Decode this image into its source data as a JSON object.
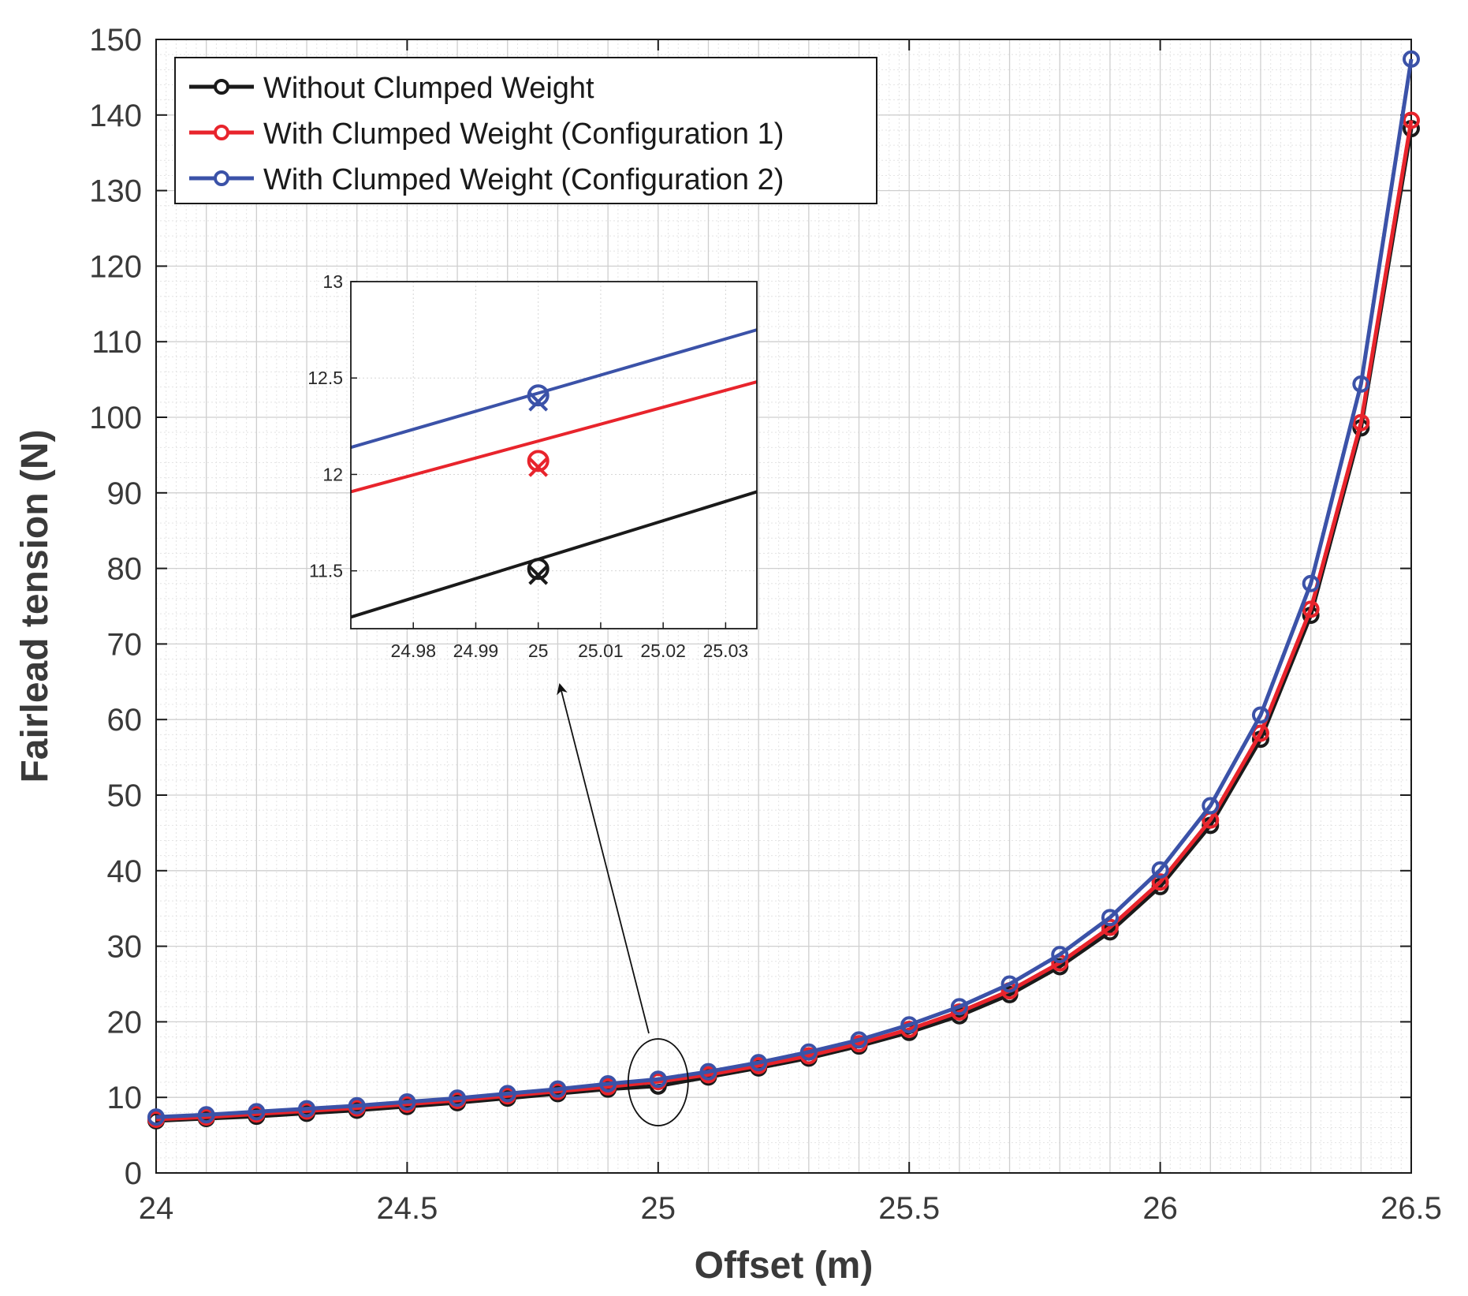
{
  "chart_data": {
    "type": "line",
    "title": "",
    "xlabel": "Offset (m)",
    "ylabel": "Fairlead tension (N)",
    "xlim": [
      24,
      26.5
    ],
    "ylim": [
      0,
      150
    ],
    "xticks": [
      "24",
      "24.5",
      "25",
      "25.5",
      "26",
      "26.5"
    ],
    "yticks": [
      "0",
      "10",
      "20",
      "30",
      "40",
      "50",
      "60",
      "70",
      "80",
      "90",
      "100",
      "110",
      "120",
      "130",
      "140",
      "150"
    ],
    "grid": true,
    "legend_position": "top-left",
    "x": [
      24,
      24.1,
      24.2,
      24.3,
      24.4,
      24.5,
      24.6,
      24.7,
      24.8,
      24.9,
      25,
      25.1,
      25.2,
      25.3,
      25.4,
      25.5,
      25.6,
      25.7,
      25.8,
      25.9,
      26,
      26.1,
      26.2,
      26.3,
      26.4,
      26.5
    ],
    "series": [
      {
        "name": "Without Clumped Weight",
        "color": "#1a1a1a",
        "values": [
          6.9,
          7.2,
          7.5,
          7.9,
          8.3,
          8.8,
          9.3,
          9.9,
          10.5,
          11.1,
          11.5,
          12.7,
          13.9,
          15.2,
          16.8,
          18.6,
          20.8,
          23.6,
          27.3,
          31.9,
          37.9,
          46.0,
          57.4,
          73.8,
          98.6,
          138.2
        ]
      },
      {
        "name": "With Clumped Weight (Configuration 1)",
        "color": "#e8242c",
        "values": [
          7.1,
          7.4,
          7.8,
          8.2,
          8.6,
          9.1,
          9.6,
          10.2,
          10.8,
          11.4,
          12.1,
          13.0,
          14.2,
          15.5,
          17.1,
          19.0,
          21.3,
          24.1,
          27.8,
          32.5,
          38.5,
          46.7,
          58.2,
          74.6,
          99.3,
          139.3
        ]
      },
      {
        "name": "With Clumped Weight (Configuration 2)",
        "color": "#3b52a8",
        "values": [
          7.4,
          7.7,
          8.1,
          8.5,
          8.9,
          9.4,
          9.9,
          10.5,
          11.1,
          11.8,
          12.4,
          13.4,
          14.6,
          16.0,
          17.6,
          19.6,
          22.0,
          25.0,
          28.9,
          33.8,
          40.1,
          48.6,
          60.6,
          78.0,
          104.4,
          147.4
        ]
      }
    ],
    "inset": {
      "xlim": [
        24.97,
        25.035
      ],
      "ylim": [
        11.2,
        13.0
      ],
      "xticks": [
        "24.98",
        "24.99",
        "25",
        "25.01",
        "25.02",
        "25.03"
      ],
      "yticks": [
        "11.5",
        "12",
        "12.5",
        "13"
      ],
      "series": [
        {
          "name": "Without Clumped Weight",
          "color": "#1a1a1a",
          "line": [
            [
              24.97,
              11.26
            ],
            [
              25.035,
              11.91
            ]
          ],
          "point": [
            25,
            11.51
          ]
        },
        {
          "name": "With Clumped Weight (Configuration 1)",
          "color": "#e8242c",
          "line": [
            [
              24.97,
              11.91
            ],
            [
              25.035,
              12.48
            ]
          ],
          "point": [
            25,
            12.07
          ]
        },
        {
          "name": "With Clumped Weight (Configuration 2)",
          "color": "#3b52a8",
          "line": [
            [
              24.97,
              12.14
            ],
            [
              25.035,
              12.75
            ]
          ],
          "point": [
            25,
            12.41
          ]
        }
      ]
    },
    "annotation": "arrow from ellipse at x=25 to zoomed inset"
  }
}
